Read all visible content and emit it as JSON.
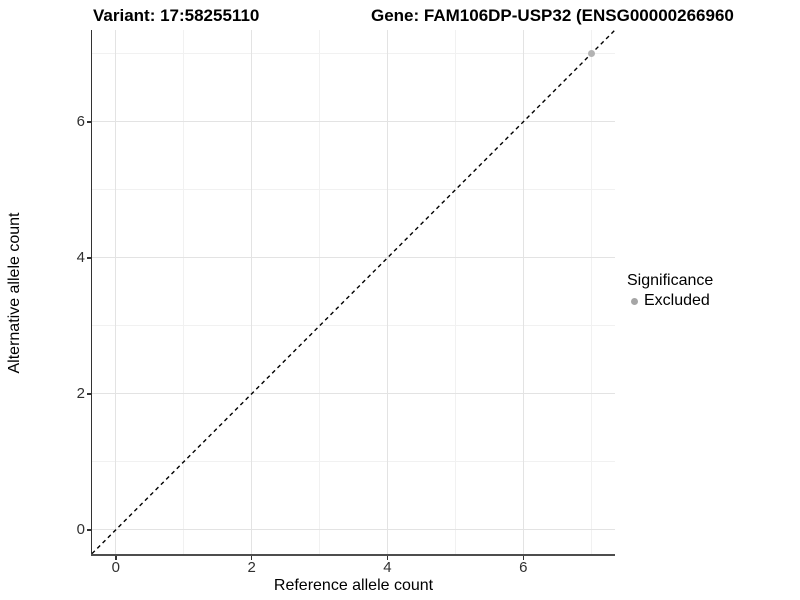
{
  "chart_data": {
    "type": "scatter",
    "title_left": "Variant: 17:58255110",
    "title_right": "Gene: FAM106DP-USP32 (ENSG00000266960",
    "xlabel": "Reference allele count",
    "ylabel": "Alternative allele count",
    "xlim": [
      -0.35,
      7.35
    ],
    "ylim": [
      -0.37,
      7.35
    ],
    "x_major_ticks": [
      0,
      2,
      4,
      6
    ],
    "x_minor_ticks": [
      1,
      3,
      5,
      7
    ],
    "y_major_ticks": [
      0,
      2,
      4,
      6
    ],
    "y_minor_ticks": [
      1,
      3,
      5,
      7
    ],
    "grid": true,
    "reference_line": {
      "type": "identity",
      "style": "dashed",
      "color": "#000000"
    },
    "series": [
      {
        "name": "Excluded",
        "color": "#b3b3b3",
        "points": [
          {
            "x": 7,
            "y": 7
          }
        ]
      }
    ],
    "legend": {
      "title": "Significance",
      "position": "right",
      "items": [
        {
          "label": "Excluded",
          "color": "#a6a6a6"
        }
      ]
    }
  },
  "colors": {
    "grid_major": "#e3e3e3",
    "grid_minor": "#f1f1f1",
    "axis_line": "#333333",
    "tick_label": "#303030",
    "point": "#b3b3b3"
  }
}
